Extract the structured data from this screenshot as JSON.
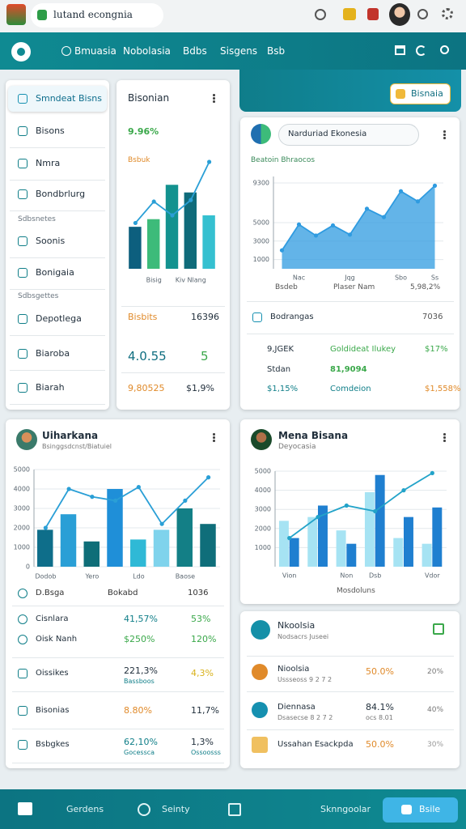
{
  "browser": {
    "tab_title": "lutand econgnia"
  },
  "nav": {
    "items": [
      "Bmuasia",
      "Nobolasia",
      "Bdbs",
      "Sisgens",
      "Bsb"
    ],
    "action": "Bisnaia"
  },
  "sidebar": {
    "groups": [
      {
        "items": [
          "Smndeat Bisns",
          "Bisons",
          "Nmra",
          "Bondbrlurg"
        ]
      },
      {
        "heading": "Sdbsnetes",
        "items": [
          "Soonis",
          "Bonigaia"
        ]
      },
      {
        "heading": "Sdbsgettes",
        "items": [
          "Depotlega",
          "Biaroba",
          "Biarah"
        ]
      }
    ]
  },
  "summary_card": {
    "title": "Bisonian",
    "change": "9.96%",
    "label": "Bsbuk",
    "chart": {
      "type": "bar",
      "categories": [
        null,
        "Bisig",
        null,
        "Kiv Nlang",
        null
      ],
      "ylim": [
        0,
        140
      ],
      "series": [
        {
          "type": "bar",
          "colors": [
            "#0d5f7e",
            "#3dbb7a",
            "#13928f",
            "#0f6b7a",
            "#35c0d0"
          ],
          "values": [
            55,
            65,
            110,
            100,
            70
          ]
        },
        {
          "type": "line",
          "color": "#2a9fd6",
          "values": [
            60,
            88,
            70,
            90,
            140
          ]
        }
      ]
    },
    "stats": [
      [
        "Bisbits",
        "16396"
      ],
      [
        "4.0.55",
        "5"
      ],
      [
        "9,80525",
        "$1,9%"
      ]
    ]
  },
  "trend_card": {
    "dropdown": "Narduriad Ekonesia",
    "subtitle": "Beatoin Bhraocos",
    "chart": {
      "type": "area",
      "categories": [
        null,
        "Nac",
        null,
        null,
        "Jqg",
        null,
        null,
        "Sbo",
        null,
        "Ss"
      ],
      "ylim": [
        0,
        10000
      ],
      "yticks": [
        1000,
        3000,
        5000,
        9300
      ],
      "grid": true,
      "series": [
        {
          "type": "area",
          "color": "#2f9be0",
          "values": [
            2000,
            4800,
            3600,
            4700,
            3700,
            6500,
            5600,
            8400,
            7300,
            9000
          ]
        }
      ]
    },
    "footer": [
      "Bsdeb",
      "Plaser Nam",
      "5,98,2%"
    ],
    "section": {
      "label": "Bodrangas",
      "value": "7036"
    },
    "rows": [
      [
        "9,JGEK",
        "Goldideat Ilukey",
        "$17%"
      ],
      [
        "Stdan",
        "81,9094"
      ],
      [
        "$1,15%",
        "Comdeion",
        "$1,558%"
      ]
    ]
  },
  "left_card": {
    "title": "Uiharkana",
    "subtitle": "Bsinggsdcnst/Biatuiel",
    "chart": {
      "type": "bar",
      "categories": [
        "Dodob",
        null,
        "Yero",
        null,
        "Ldo",
        null,
        "Baose",
        null
      ],
      "ylim": [
        0,
        5000
      ],
      "yticks": [
        0,
        1000,
        2000,
        3000,
        4000,
        5000
      ],
      "grid": true,
      "series": [
        {
          "type": "bar",
          "colors": [
            "#0e6e8a",
            "#2a9fd6",
            "#0f6e78",
            "#1f8fd8",
            "#2fb9d6",
            "#7fd3ec",
            "#137f86",
            "#0f6e7a"
          ],
          "values": [
            1900,
            2700,
            1300,
            4000,
            1400,
            1900,
            3000,
            2200
          ]
        },
        {
          "type": "line",
          "color": "#2a9fd6",
          "values": [
            2000,
            4000,
            3600,
            3400,
            4100,
            2200,
            3400,
            4600
          ]
        }
      ]
    },
    "header": [
      "D.Bsga",
      "Bokabd",
      "1036"
    ],
    "rows": [
      {
        "label": "Cisnlara",
        "values": [
          "41,57%",
          "53%"
        ]
      },
      {
        "label": "Oisk Nanh",
        "values": [
          "$250%",
          "120%"
        ]
      },
      {
        "label": "Oissikes",
        "values": [
          "221,3%",
          "4,3%"
        ],
        "notes": [
          "Bassboos"
        ]
      },
      {
        "label": "Bisonias",
        "values": [
          "8.80%",
          "11,7%"
        ]
      },
      {
        "label": "Bsbgkes",
        "values": [
          "62,10%",
          "1,3%"
        ],
        "notes": [
          "Gocessca",
          "Ossoosss"
        ]
      }
    ]
  },
  "right_card": {
    "title": "Mena Bisana",
    "subtitle": "Deyocasia",
    "chart": {
      "type": "bar",
      "categories": [
        "Vion",
        null,
        "Non",
        "Dsb",
        null,
        "Vdor"
      ],
      "ylim": [
        0,
        5000
      ],
      "yticks": [
        1000,
        2000,
        3000,
        4000,
        5000
      ],
      "grid": true,
      "series": [
        {
          "type": "bar",
          "color": "#a6e3f3",
          "values": [
            2400,
            2600,
            1900,
            3900,
            1500,
            1200
          ]
        },
        {
          "type": "bar",
          "color": "#1f7fd0",
          "values": [
            1500,
            3200,
            1200,
            4800,
            2600,
            3100
          ]
        },
        {
          "type": "line",
          "color": "#22a3c9",
          "values": [
            1500,
            2600,
            3200,
            2900,
            4000,
            4900
          ]
        }
      ]
    },
    "footer": "Mosdoluns"
  },
  "list_card": {
    "title": "Nkoolsia",
    "subtitle": "Nodsacrs Juseei",
    "rows": [
      {
        "label": "Nioolsia",
        "note": "Ussseoss 9 2 7 2",
        "values": [
          "50.0%",
          "20%"
        ]
      },
      {
        "label": "Diennasa",
        "note": "Dsasecse 8 2 7 2",
        "values": [
          "84.1%",
          "40%"
        ],
        "notes": [
          "ocs 8.01"
        ]
      },
      {
        "label": "Ussahan Esackpda",
        "values": [
          "50.0%",
          "30%"
        ]
      }
    ]
  },
  "bottom_nav": {
    "items": [
      "Gerdens",
      "Seinty",
      "Sknngoolar"
    ],
    "button": "Bsile"
  }
}
